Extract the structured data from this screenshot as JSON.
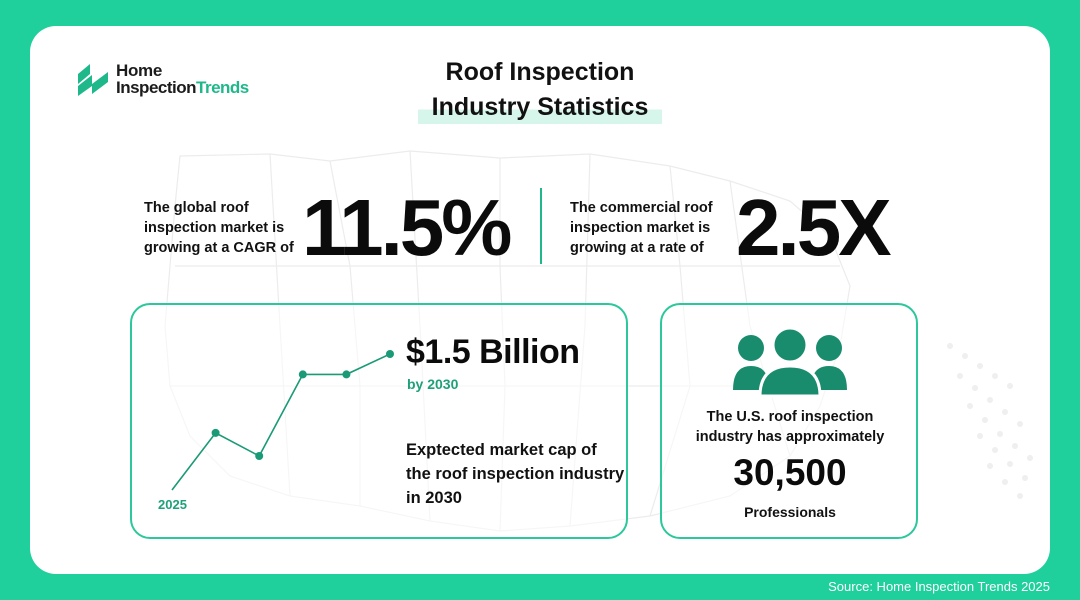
{
  "brand": {
    "name_line1": "Home",
    "name_line2a": "Inspection",
    "name_line2b": "Trends"
  },
  "title": {
    "line1": "Roof Inspection",
    "line2": "Industry Statistics"
  },
  "stat_global": {
    "label": [
      "The global roof",
      "inspection market is",
      "growing at a CAGR of"
    ],
    "value": "11.5%"
  },
  "stat_commercial": {
    "label": [
      "The commercial roof",
      "inspection market is",
      "growing at a rate of"
    ],
    "value": "2.5X"
  },
  "market": {
    "amount": "$1.5 Billion",
    "by": "by 2030",
    "description": "Exptected market cap of the roof inspection industry in 2030",
    "start_label": "2025",
    "trend": [
      0.0,
      0.42,
      0.25,
      0.85,
      0.85,
      1.0
    ]
  },
  "professionals": {
    "label": [
      "The U.S. roof inspection",
      "industry has approximately"
    ],
    "count": "30,500",
    "unit": "Professionals",
    "icon": "people-group-icon"
  },
  "source": "Source: Home Inspection Trends 2025",
  "colors": {
    "background": "#1fcf9c",
    "accent": "#1fb88b",
    "dark_teal": "#1a8c6e",
    "card": "#ffffff"
  }
}
